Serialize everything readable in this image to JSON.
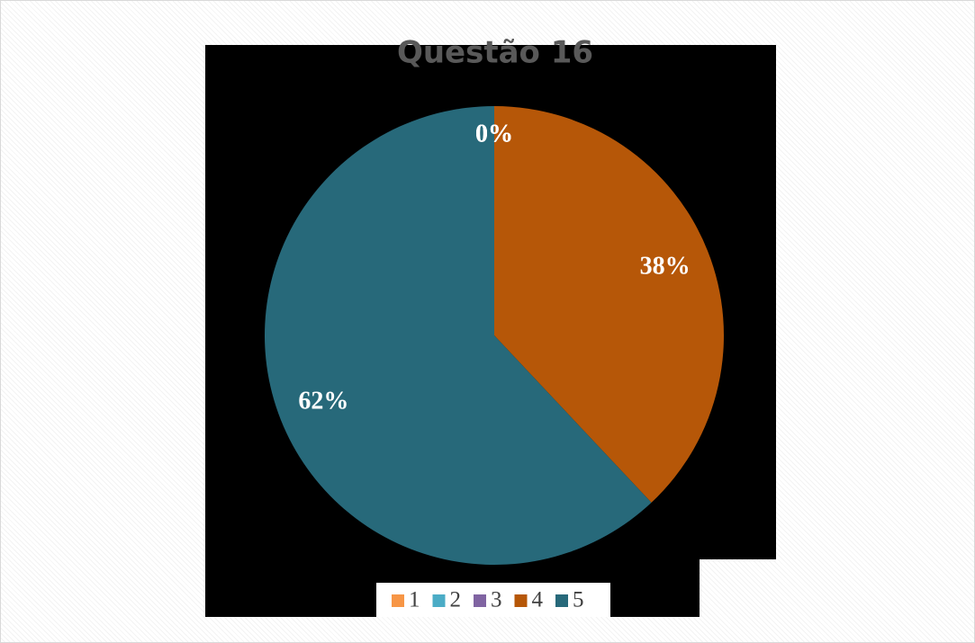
{
  "chart_data": {
    "type": "pie",
    "title": "Questão 16",
    "categories": [
      "1",
      "2",
      "3",
      "4",
      "5"
    ],
    "values": [
      0,
      0,
      0,
      38,
      62
    ],
    "value_labels": [
      "0%",
      "0%",
      "0%",
      "38%",
      "62%"
    ],
    "colors": [
      "#f79646",
      "#4bacc6",
      "#8064a2",
      "#b65708",
      "#27697a"
    ],
    "legend": "bottom"
  }
}
